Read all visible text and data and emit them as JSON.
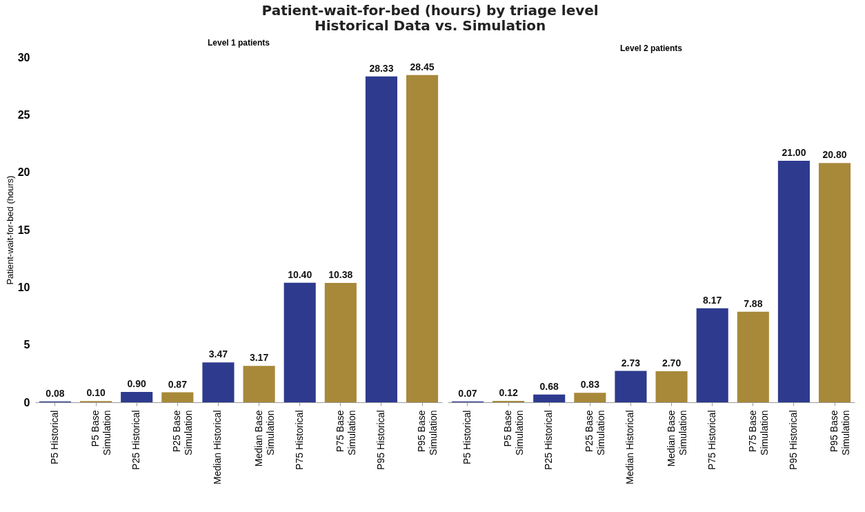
{
  "chart_data": [
    {
      "type": "bar",
      "title": "Patient-wait-for-bed (hours) by triage level\nHistorical Data vs. Simulation",
      "subtitle": "Level 1 patients",
      "ylabel": "Patient-wait-for-bed (hours)",
      "categories": [
        "P5 Historical",
        "P5 Base\nSimulation",
        "P25 Historical",
        "P25 Base\nSimulation",
        "Median Historical",
        "Median Base\nSimulation",
        "P75 Historical",
        "P75 Base\nSimulation",
        "P95 Historical",
        "P95 Base\nSimulation"
      ],
      "values": [
        0.08,
        0.1,
        0.9,
        0.87,
        3.47,
        3.17,
        10.4,
        10.38,
        28.33,
        28.45
      ],
      "value_labels": [
        "0.08",
        "0.10",
        "0.90",
        "0.87",
        "3.47",
        "3.17",
        "10.40",
        "10.38",
        "28.33",
        "28.45"
      ],
      "colors": [
        "#2e3a8e",
        "#a8893a",
        "#2e3a8e",
        "#a8893a",
        "#2e3a8e",
        "#a8893a",
        "#2e3a8e",
        "#a8893a",
        "#2e3a8e",
        "#a8893a"
      ],
      "ylim": [
        0,
        30
      ],
      "yticks": [
        0,
        5,
        10,
        15,
        20,
        25,
        30
      ]
    },
    {
      "type": "bar",
      "subtitle": "Level 2 patients",
      "categories": [
        "P5 Historical",
        "P5 Base\nSimulation",
        "P25 Historical",
        "P25 Base\nSimulation",
        "Median Historical",
        "Median Base\nSimulation",
        "P75 Historical",
        "P75 Base\nSimulation",
        "P95 Historical",
        "P95 Base\nSimulation"
      ],
      "values": [
        0.07,
        0.12,
        0.68,
        0.83,
        2.73,
        2.7,
        8.17,
        7.88,
        21.0,
        20.8
      ],
      "value_labels": [
        "0.07",
        "0.12",
        "0.68",
        "0.83",
        "2.73",
        "2.70",
        "8.17",
        "7.88",
        "21.00",
        "20.80"
      ],
      "colors": [
        "#2e3a8e",
        "#a8893a",
        "#2e3a8e",
        "#a8893a",
        "#2e3a8e",
        "#a8893a",
        "#2e3a8e",
        "#a8893a",
        "#2e3a8e",
        "#a8893a"
      ],
      "ylim": [
        0,
        30
      ],
      "yticks": [
        0,
        5,
        10,
        15,
        20,
        25,
        30
      ],
      "tick_labels": "x"
    }
  ]
}
